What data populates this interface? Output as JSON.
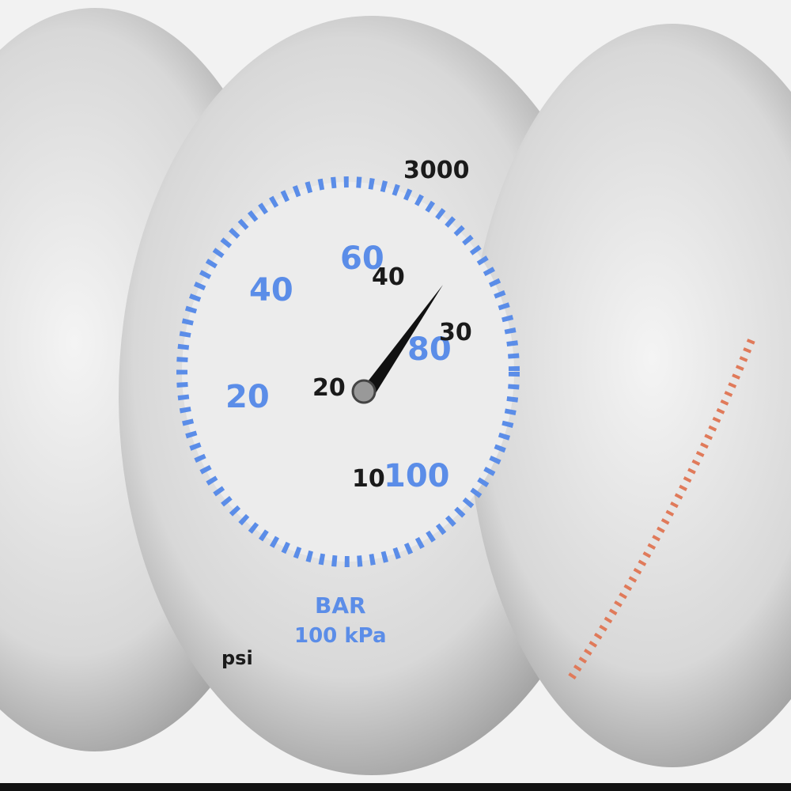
{
  "photo": {
    "subject": "pressure gauge",
    "colors": {
      "dial": "#ececec",
      "bezel": "#b8b8b8",
      "blue_scale": "#5b8de8",
      "black_scale": "#1a1a1a",
      "red_scale": "#e07a5a",
      "bottom_bar": "#111111"
    },
    "blue_scale_labels": [
      "20",
      "40",
      "60",
      "80",
      "100"
    ],
    "black_scale_labels": [
      "3000",
      "10",
      "20",
      "30",
      "40"
    ],
    "unit_labels": {
      "bar": "BAR",
      "kpa": "100 kPa",
      "psi": "psi"
    }
  }
}
